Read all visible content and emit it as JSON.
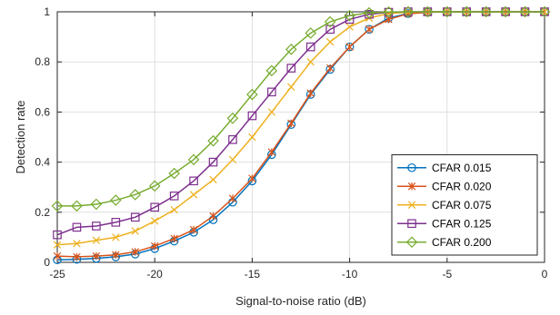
{
  "chart_data": {
    "type": "line",
    "xlabel": "Signal-to-noise ratio (dB)",
    "ylabel": "Detection rate",
    "xlim": [
      -25,
      0
    ],
    "ylim": [
      0,
      1
    ],
    "xticks": [
      -25,
      -20,
      -15,
      -10,
      -5,
      0
    ],
    "yticks": [
      0,
      0.2,
      0.4,
      0.6,
      0.8,
      1
    ],
    "xtick_labels": [
      "-25",
      "-20",
      "-15",
      "-10",
      "-5",
      "0"
    ],
    "ytick_labels": [
      "0",
      "0.2",
      "0.4",
      "0.6",
      "0.8",
      "1"
    ],
    "grid": true,
    "legend_position": "bottom-right",
    "x": [
      -25,
      -24,
      -23,
      -22,
      -21,
      -20,
      -19,
      -18,
      -17,
      -16,
      -15,
      -14,
      -13,
      -12,
      -11,
      -10,
      -9,
      -8,
      -7,
      -6,
      -5,
      -4,
      -3,
      -2,
      -1,
      0
    ],
    "series": [
      {
        "name": "CFAR 0.015",
        "color": "#0072BD",
        "marker": "circle",
        "values": [
          0.01,
          0.012,
          0.016,
          0.022,
          0.033,
          0.055,
          0.085,
          0.12,
          0.17,
          0.24,
          0.325,
          0.43,
          0.55,
          0.67,
          0.77,
          0.86,
          0.93,
          0.975,
          0.993,
          0.998,
          1,
          1,
          1,
          1,
          1,
          1
        ]
      },
      {
        "name": "CFAR 0.020",
        "color": "#D95319",
        "marker": "asterisk",
        "values": [
          0.025,
          0.022,
          0.025,
          0.03,
          0.042,
          0.065,
          0.095,
          0.13,
          0.185,
          0.255,
          0.335,
          0.44,
          0.555,
          0.675,
          0.775,
          0.86,
          0.93,
          0.97,
          0.992,
          0.998,
          1,
          1,
          1,
          1,
          1,
          1
        ]
      },
      {
        "name": "CFAR 0.075",
        "color": "#EDB120",
        "marker": "x",
        "values": [
          0.07,
          0.075,
          0.088,
          0.1,
          0.125,
          0.165,
          0.21,
          0.27,
          0.33,
          0.41,
          0.5,
          0.6,
          0.7,
          0.8,
          0.88,
          0.94,
          0.975,
          0.993,
          0.998,
          1,
          1,
          1,
          1,
          1,
          1,
          1
        ]
      },
      {
        "name": "CFAR 0.125",
        "color": "#7E2F8E",
        "marker": "square",
        "values": [
          0.11,
          0.14,
          0.145,
          0.16,
          0.18,
          0.22,
          0.265,
          0.325,
          0.4,
          0.49,
          0.585,
          0.68,
          0.775,
          0.86,
          0.93,
          0.97,
          0.99,
          0.998,
          1,
          1,
          1,
          1,
          1,
          1,
          1,
          1
        ]
      },
      {
        "name": "CFAR 0.200",
        "color": "#77AC30",
        "marker": "diamond",
        "values": [
          0.225,
          0.225,
          0.232,
          0.248,
          0.27,
          0.305,
          0.355,
          0.41,
          0.485,
          0.575,
          0.67,
          0.765,
          0.85,
          0.915,
          0.96,
          0.985,
          0.996,
          0.999,
          1,
          1,
          1,
          1,
          1,
          1,
          1,
          1
        ]
      }
    ]
  }
}
